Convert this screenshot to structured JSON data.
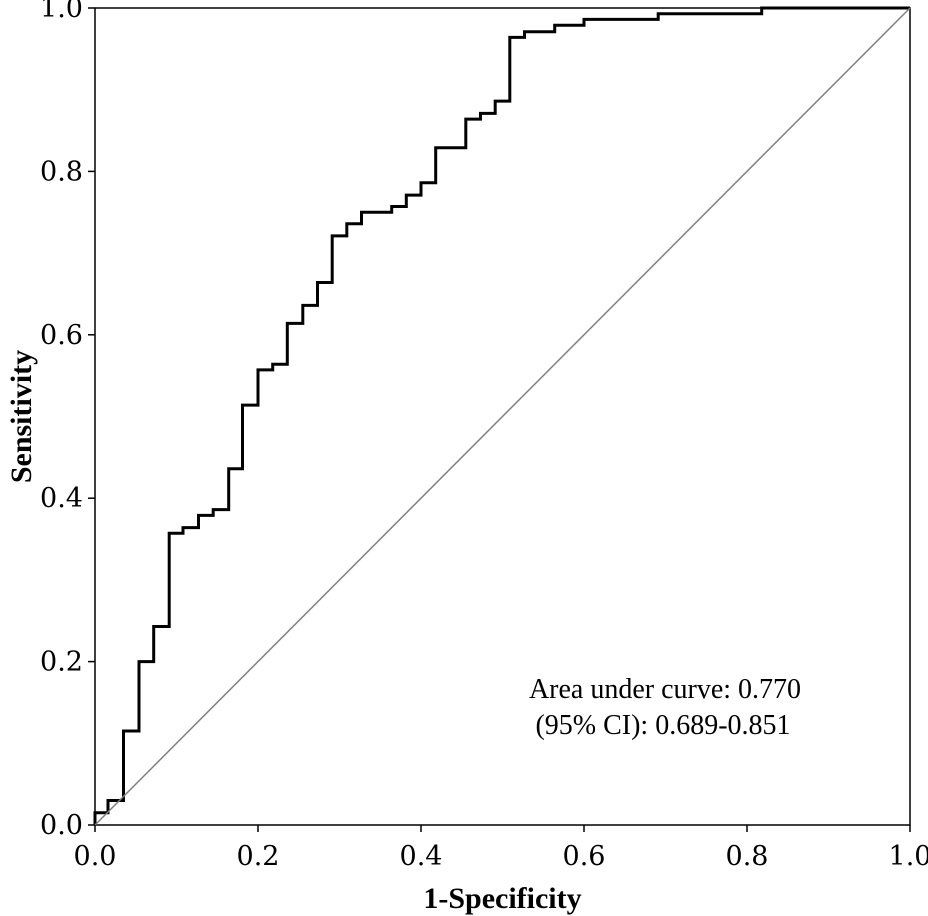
{
  "chart_data": {
    "type": "line",
    "title": "",
    "xlabel": "1-Specificity",
    "ylabel": "Sensitivity",
    "xlim": [
      0,
      1
    ],
    "ylim": [
      0,
      1
    ],
    "x_ticks": [
      "0.0",
      "0.2",
      "0.4",
      "0.6",
      "0.8",
      "1.0"
    ],
    "y_ticks": [
      "0.0",
      "0.2",
      "0.4",
      "0.6",
      "0.8",
      "1.0"
    ],
    "grid": false,
    "legend": "none",
    "annotations": [
      "Area under curve: 0.770",
      "(95% CI): 0.689-0.851"
    ],
    "series": [
      {
        "type": "step",
        "color": "#000000",
        "x": [
          0.0,
          0.0,
          0.016,
          0.016,
          0.035,
          0.035,
          0.054,
          0.054,
          0.072,
          0.072,
          0.091,
          0.091,
          0.108,
          0.108,
          0.127,
          0.127,
          0.145,
          0.145,
          0.164,
          0.164,
          0.181,
          0.181,
          0.2,
          0.2,
          0.218,
          0.218,
          0.236,
          0.236,
          0.255,
          0.255,
          0.273,
          0.273,
          0.291,
          0.291,
          0.309,
          0.309,
          0.327,
          0.327,
          0.364,
          0.364,
          0.382,
          0.382,
          0.4,
          0.4,
          0.418,
          0.418,
          0.455,
          0.455,
          0.473,
          0.473,
          0.491,
          0.491,
          0.509,
          0.509,
          0.527,
          0.527,
          0.564,
          0.564,
          0.6,
          0.6,
          0.691,
          0.691,
          0.818,
          0.818,
          1.0
        ],
        "y": [
          0.0,
          0.015,
          0.015,
          0.03,
          0.03,
          0.115,
          0.115,
          0.2,
          0.2,
          0.243,
          0.243,
          0.357,
          0.357,
          0.364,
          0.364,
          0.379,
          0.379,
          0.386,
          0.386,
          0.436,
          0.436,
          0.514,
          0.514,
          0.557,
          0.557,
          0.564,
          0.564,
          0.614,
          0.614,
          0.636,
          0.636,
          0.664,
          0.664,
          0.721,
          0.721,
          0.736,
          0.736,
          0.75,
          0.75,
          0.757,
          0.757,
          0.771,
          0.771,
          0.786,
          0.786,
          0.829,
          0.829,
          0.864,
          0.864,
          0.871,
          0.871,
          0.886,
          0.886,
          0.964,
          0.964,
          0.971,
          0.971,
          0.979,
          0.979,
          0.986,
          0.986,
          0.993,
          0.993,
          1.0,
          1.0
        ]
      },
      {
        "type": "reference",
        "color": "#808080",
        "x": [
          0,
          1
        ],
        "y": [
          0,
          1
        ]
      }
    ]
  }
}
